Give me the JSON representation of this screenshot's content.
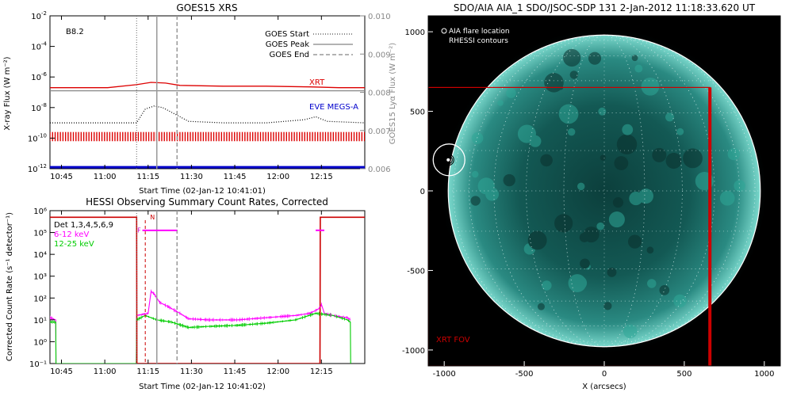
{
  "chart_data": [
    {
      "type": "line",
      "title": "GOES15 XRS",
      "xlabel": "Start Time (02-Jan-12 10:41:01)",
      "ylabel": "X-ray Flux (W m⁻²)",
      "y2label": "GOES15 Lyα Flux (W m⁻²)",
      "xaxis_unit": "minutes since 10:41:01",
      "xlim": [
        0,
        109
      ],
      "xticks": [
        "10:45",
        "11:00",
        "11:15",
        "11:30",
        "11:45",
        "12:00",
        "12:15"
      ],
      "yscale": "log",
      "ylim_exp": [
        -12,
        -2
      ],
      "yticks_exp": [
        -2,
        -4,
        -6,
        -8,
        -10,
        -12
      ],
      "y2lim": [
        0.006,
        0.01
      ],
      "y2ticks": [
        "0.006",
        "0.007",
        "0.008",
        "0.009",
        "0.010"
      ],
      "grid": false,
      "class_label": "B8.2",
      "legend": [
        "GOES Start",
        "GOES Peak",
        "GOES End"
      ],
      "legend_position": "top-right",
      "events": {
        "start_min": 30,
        "peak_min": 37,
        "end_min": 44
      },
      "series": [
        {
          "name": "XRT",
          "color": "#dd0000",
          "x": [
            0,
            20,
            30,
            35,
            40,
            45,
            60,
            75,
            90,
            100,
            109
          ],
          "log_y": [
            -6.7,
            -6.7,
            -6.5,
            -6.35,
            -6.4,
            -6.55,
            -6.6,
            -6.6,
            -6.65,
            -6.7,
            -6.7
          ]
        },
        {
          "name": "long_channel_gray",
          "color": "#888888",
          "x": [
            0,
            109
          ],
          "log_y": [
            -6.9,
            -6.9
          ]
        },
        {
          "name": "short_channel",
          "color": "#000000",
          "x": [
            0,
            30,
            33,
            36,
            39,
            42,
            45,
            48,
            60,
            75,
            88,
            92,
            96,
            109
          ],
          "log_y": [
            -9,
            -9,
            -8.1,
            -7.9,
            -8.0,
            -8.3,
            -8.6,
            -8.9,
            -9,
            -9,
            -8.8,
            -8.6,
            -8.9,
            -9
          ]
        },
        {
          "name": "EVE MEGS-A",
          "color": "#0000cc",
          "x": [
            0,
            109
          ],
          "log_y": [
            -11.9,
            -11.9
          ]
        },
        {
          "name": "coverage",
          "color": "#dd0000",
          "style": "hatched",
          "log_y_band": [
            -10.2,
            -9.6
          ]
        }
      ]
    },
    {
      "type": "line",
      "title": "HESSI Observing Summary Count Rates, Corrected",
      "xlabel": "Start Time (02-Jan-12 10:41:02)",
      "ylabel": "Corrected Count Rate (s⁻¹ detector⁻¹)",
      "xaxis_unit": "minutes since 10:41:02",
      "xlim": [
        0,
        109
      ],
      "xticks": [
        "10:45",
        "11:00",
        "11:15",
        "11:30",
        "11:45",
        "12:00",
        "12:15"
      ],
      "yscale": "log",
      "ylim_exp": [
        -1,
        6
      ],
      "yticks": [
        "10⁶",
        "10⁵",
        "10⁴",
        "10³",
        "10²",
        "10¹",
        "10⁰",
        "10⁻¹"
      ],
      "grid": false,
      "legend": [
        {
          "label": "Det 1,3,4,5,6,9",
          "color": "#000000"
        },
        {
          "label": "6-12 keV",
          "color": "#ff00ff"
        },
        {
          "label": "12-25 keV",
          "color": "#00cc00"
        }
      ],
      "annotations": [
        "F",
        "N"
      ],
      "events": {
        "start_min": 30,
        "peak_min": 37,
        "end_min": 44
      },
      "series": [
        {
          "name": "6-12 keV",
          "color": "#ff00ff",
          "x": [
            0,
            2,
            2.1,
            29.9,
            30,
            34,
            35,
            36,
            38,
            41,
            45,
            48,
            55,
            65,
            75,
            85,
            90,
            93,
            94,
            95,
            98,
            103,
            104
          ],
          "log_y": [
            1.1,
            1.0,
            -1,
            -1,
            1.2,
            1.3,
            2.3,
            2.2,
            1.8,
            1.6,
            1.3,
            1.05,
            1.0,
            1.0,
            1.1,
            1.2,
            1.3,
            1.5,
            1.7,
            1.3,
            1.2,
            1.1,
            1.0
          ]
        },
        {
          "name": "12-25 keV",
          "color": "#00cc00",
          "x": [
            0,
            2,
            2.1,
            29.9,
            30,
            33,
            37,
            42,
            48,
            55,
            65,
            75,
            85,
            92,
            98,
            103,
            104,
            104.1
          ],
          "log_y": [
            0.9,
            0.9,
            -1,
            -1,
            1.0,
            1.2,
            1.0,
            0.9,
            0.65,
            0.7,
            0.75,
            0.85,
            1.0,
            1.3,
            1.2,
            1.0,
            0.9,
            -1
          ]
        },
        {
          "name": "attenuator_red",
          "color": "#cc0000",
          "x": [
            0,
            30,
            30.1,
            93.5,
            93.6,
            109
          ],
          "log_y": [
            5.7,
            5.7,
            -1,
            -1,
            5.7,
            5.7
          ]
        }
      ]
    },
    {
      "type": "heatmap",
      "title": "SDO/AIA AIA_1 SDO/JSOC-SDP 131  2-Jan-2012 11:18:33.620 UT",
      "xlabel": "X (arcsecs)",
      "ylabel": "",
      "xlim": [
        -1100,
        1100
      ],
      "ylim": [
        -1100,
        1100
      ],
      "xticks": [
        -1000,
        -500,
        0,
        500,
        1000
      ],
      "yticks": [
        1000,
        500,
        0,
        -500,
        -1000
      ],
      "legend": [
        "AIA flare location",
        "RHESSI contours"
      ],
      "legend_position": "top-left",
      "solar_radius_arcsec": 975,
      "flare_location": [
        -970,
        195
      ],
      "xrt_fov": {
        "label": "XRT FOV",
        "x": [
          -1100,
          660
        ],
        "y": [
          -1100,
          650
        ],
        "color": "#cc0000"
      },
      "colormap": "teal"
    }
  ]
}
